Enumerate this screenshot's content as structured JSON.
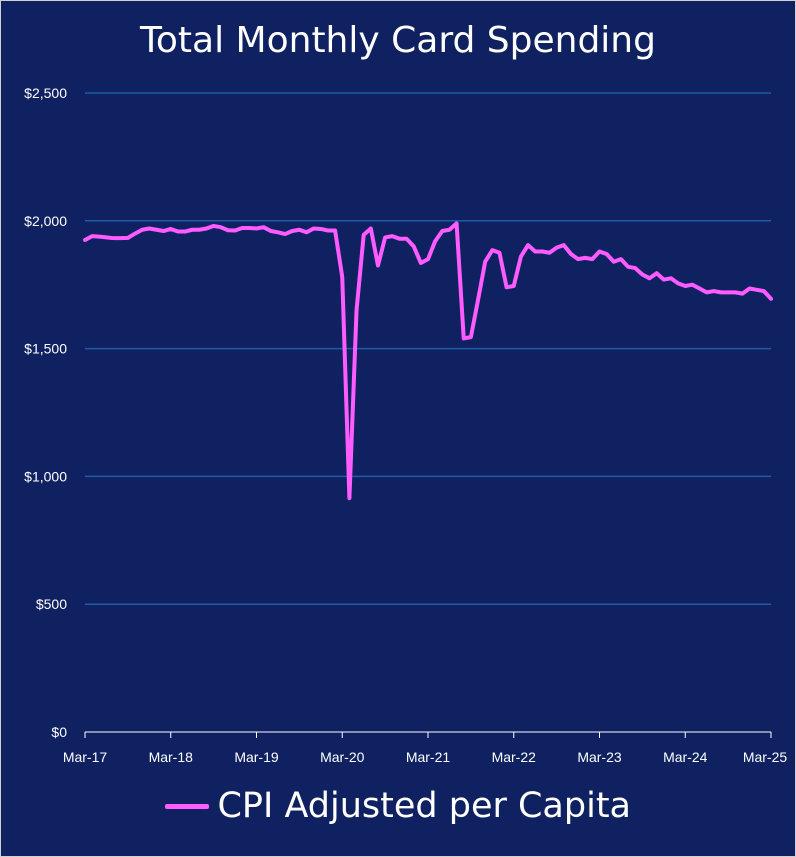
{
  "colors": {
    "background": "#0f2160",
    "line": "#ff5cff",
    "grid": "#1d5ba8",
    "text": "#ffffff"
  },
  "chart_data": {
    "type": "line",
    "title": "Total Monthly Card Spending",
    "xlabel": "",
    "ylabel": "",
    "ylim": [
      0,
      2500
    ],
    "ytick_values": [
      0,
      500,
      1000,
      1500,
      2000,
      2500
    ],
    "yticks": [
      "$0",
      "$500",
      "$1,000",
      "$1,500",
      "$2,000",
      "$2,500"
    ],
    "xtick_index": [
      0,
      12,
      24,
      36,
      48,
      60,
      72,
      84,
      96
    ],
    "xticks": [
      "Mar-17",
      "Mar-18",
      "Mar-19",
      "Mar-20",
      "Mar-21",
      "Mar-22",
      "Mar-23",
      "Mar-24",
      "Mar-25"
    ],
    "grid": true,
    "legend_position": "bottom",
    "series": [
      {
        "name": "CPI Adjusted per Capita",
        "x_start": "Mar-17",
        "frequency": "monthly",
        "values": [
          1925,
          1940,
          1938,
          1935,
          1932,
          1932,
          1933,
          1950,
          1965,
          1970,
          1965,
          1960,
          1968,
          1958,
          1958,
          1965,
          1965,
          1970,
          1980,
          1975,
          1963,
          1962,
          1972,
          1972,
          1970,
          1975,
          1960,
          1955,
          1948,
          1960,
          1965,
          1955,
          1970,
          1968,
          1962,
          1962,
          1780,
          915,
          1650,
          1945,
          1970,
          1825,
          1935,
          1940,
          1930,
          1930,
          1900,
          1835,
          1850,
          1920,
          1960,
          1965,
          1990,
          1540,
          1545,
          1690,
          1840,
          1885,
          1875,
          1740,
          1745,
          1860,
          1905,
          1880,
          1880,
          1875,
          1895,
          1905,
          1870,
          1850,
          1855,
          1850,
          1880,
          1870,
          1840,
          1850,
          1820,
          1815,
          1790,
          1775,
          1795,
          1770,
          1775,
          1755,
          1745,
          1750,
          1735,
          1720,
          1725,
          1720,
          1720,
          1720,
          1715,
          1735,
          1730,
          1725,
          1695
        ]
      }
    ]
  }
}
